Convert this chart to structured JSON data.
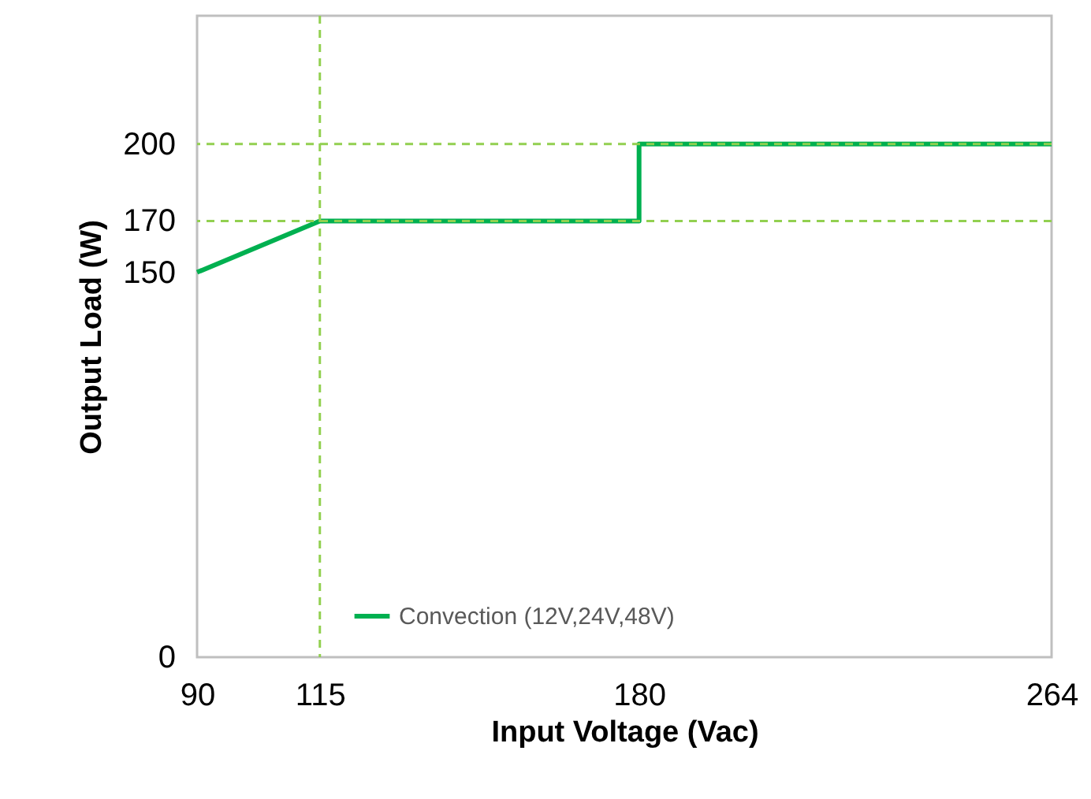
{
  "chart_data": {
    "type": "line",
    "xlabel": "Input Voltage (Vac)",
    "ylabel": "Output Load (W)",
    "x": [
      90,
      115,
      180,
      180,
      264
    ],
    "series": [
      {
        "name": "Convection (12V,24V,48V)",
        "color": "#00b050",
        "values": [
          150,
          170,
          170,
          200,
          200
        ]
      }
    ],
    "xlim": [
      90,
      264
    ],
    "xticks": [
      90,
      115,
      180,
      264
    ],
    "ylim": [
      0,
      250
    ],
    "yticks": [
      0,
      150,
      170,
      200
    ],
    "ref_lines": [
      {
        "axis": "x",
        "value": 115,
        "color": "#92d050",
        "line_style": "dashed"
      },
      {
        "axis": "y",
        "value": 170,
        "color": "#92d050",
        "line_style": "dashed"
      },
      {
        "axis": "y",
        "value": 200,
        "color": "#92d050",
        "line_style": "dashed"
      }
    ],
    "grid": false,
    "legend": "bottom",
    "marker": "none",
    "line_style": "solid"
  }
}
